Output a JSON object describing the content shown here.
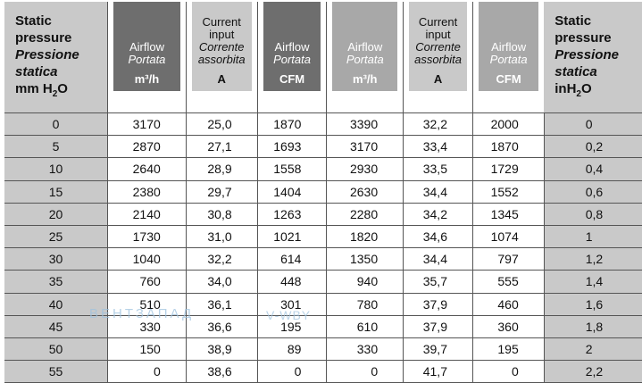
{
  "header": {
    "static_left": {
      "l1": "Static",
      "l2": "pressure",
      "l3": "Pressione",
      "l4": "statica",
      "l5a": "mm H",
      "l5sub": "2",
      "l5b": "O"
    },
    "col1": {
      "a": "Airflow",
      "b": "Portata",
      "u": "m³/h"
    },
    "col2": {
      "a": "Current",
      "b": "input",
      "c": "Corrente",
      "d": "assorbita",
      "u": "A"
    },
    "col3": {
      "a": "Airflow",
      "b": "Portata",
      "u": "CFM"
    },
    "col4": {
      "a": "Airflow",
      "b": "Portata",
      "u": "m³/h"
    },
    "col5": {
      "a": "Current",
      "b": "input",
      "c": "Corrente",
      "d": "assorbita",
      "u": "A"
    },
    "col6": {
      "a": "Airflow",
      "b": "Portata",
      "u": "CFM"
    },
    "static_right": {
      "l1": "Static",
      "l2": "pressure",
      "l3": "Pressione",
      "l4": "statica",
      "l5a": "inH",
      "l5sub": "2",
      "l5b": "O"
    }
  },
  "rows": [
    [
      "0",
      "3170",
      "25,0",
      "1870",
      "3390",
      "32,2",
      "2000",
      "0"
    ],
    [
      "5",
      "2870",
      "27,1",
      "1693",
      "3170",
      "33,4",
      "1870",
      "0,2"
    ],
    [
      "10",
      "2640",
      "28,9",
      "1558",
      "2930",
      "33,5",
      "1729",
      "0,4"
    ],
    [
      "15",
      "2380",
      "29,7",
      "1404",
      "2630",
      "34,4",
      "1552",
      "0,6"
    ],
    [
      "20",
      "2140",
      "30,8",
      "1263",
      "2280",
      "34,2",
      "1345",
      "0,8"
    ],
    [
      "25",
      "1730",
      "31,0",
      "1021",
      "1820",
      "34,6",
      "1074",
      "1"
    ],
    [
      "30",
      "1040",
      "32,2",
      "614",
      "1350",
      "34,4",
      "797",
      "1,2"
    ],
    [
      "35",
      "760",
      "34,0",
      "448",
      "940",
      "35,7",
      "555",
      "1,4"
    ],
    [
      "40",
      "510",
      "36,1",
      "301",
      "780",
      "37,9",
      "460",
      "1,6"
    ],
    [
      "45",
      "330",
      "36,6",
      "195",
      "610",
      "37,9",
      "360",
      "1,8"
    ],
    [
      "50",
      "150",
      "38,9",
      "89",
      "330",
      "39,7",
      "195",
      "2"
    ],
    [
      "55",
      "0",
      "38,6",
      "0",
      "0",
      "41,7",
      "0",
      "2,2"
    ]
  ],
  "watermark": {
    "text": "ВЕНТЗАПАД",
    "site": "V-WBY"
  }
}
